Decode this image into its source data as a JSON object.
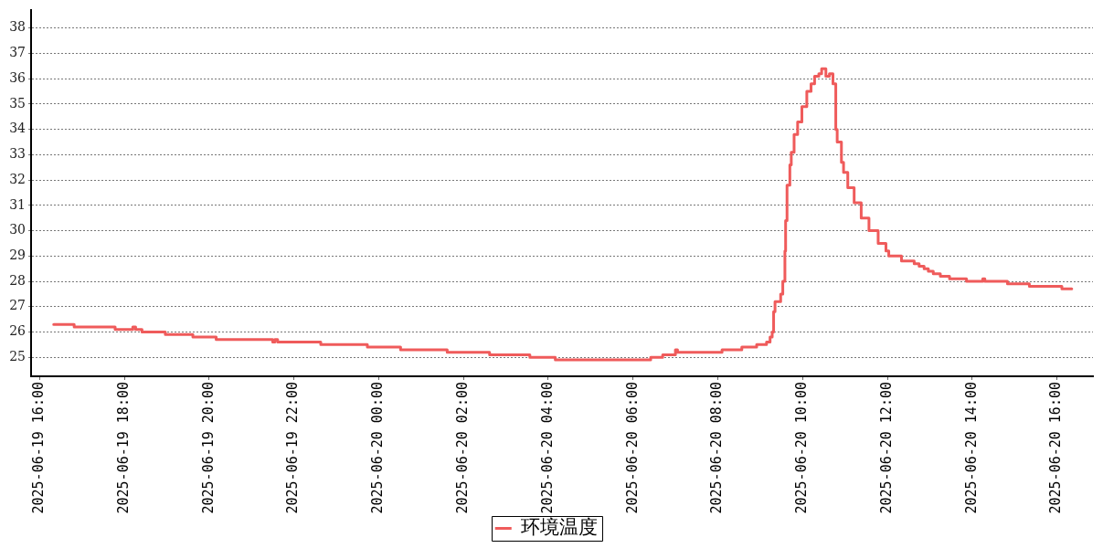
{
  "chart_data": {
    "type": "step",
    "x": [
      "2025-06-19T16:20",
      "2025-06-19T16:49",
      "2025-06-19T17:47",
      "2025-06-19T18:12",
      "2025-06-19T18:16",
      "2025-06-19T18:25",
      "2025-06-19T18:58",
      "2025-06-19T19:37",
      "2025-06-19T20:10",
      "2025-06-19T21:30",
      "2025-06-19T21:33",
      "2025-06-19T21:37",
      "2025-06-19T22:38",
      "2025-06-19T23:44",
      "2025-06-20T00:31",
      "2025-06-20T01:37",
      "2025-06-20T02:37",
      "2025-06-20T03:34",
      "2025-06-20T04:10",
      "2025-06-20T06:25",
      "2025-06-20T06:42",
      "2025-06-20T07:00",
      "2025-06-20T07:03",
      "2025-06-20T08:06",
      "2025-06-20T08:34",
      "2025-06-20T08:55",
      "2025-06-20T09:09",
      "2025-06-20T09:14",
      "2025-06-20T09:17",
      "2025-06-20T09:19",
      "2025-06-20T09:21",
      "2025-06-20T09:29",
      "2025-06-20T09:32",
      "2025-06-20T09:35",
      "2025-06-20T09:36",
      "2025-06-20T09:38",
      "2025-06-20T09:42",
      "2025-06-20T09:44",
      "2025-06-20T09:48",
      "2025-06-20T09:53",
      "2025-06-20T09:59",
      "2025-06-20T10:06",
      "2025-06-20T10:12",
      "2025-06-20T10:17",
      "2025-06-20T10:23",
      "2025-06-20T10:27",
      "2025-06-20T10:33",
      "2025-06-20T10:38",
      "2025-06-20T10:43",
      "2025-06-20T10:47",
      "2025-06-20T10:49",
      "2025-06-20T10:55",
      "2025-06-20T10:58",
      "2025-06-20T11:04",
      "2025-06-20T11:13",
      "2025-06-20T11:23",
      "2025-06-20T11:34",
      "2025-06-20T11:47",
      "2025-06-20T11:58",
      "2025-06-20T12:02",
      "2025-06-20T12:20",
      "2025-06-20T12:38",
      "2025-06-20T12:45",
      "2025-06-20T12:52",
      "2025-06-20T12:58",
      "2025-06-20T13:05",
      "2025-06-20T13:15",
      "2025-06-20T13:28",
      "2025-06-20T13:52",
      "2025-06-20T14:15",
      "2025-06-20T14:18",
      "2025-06-20T14:50",
      "2025-06-20T15:21",
      "2025-06-20T16:07",
      "2025-06-20T16:21"
    ],
    "series": [
      {
        "name": "环境温度",
        "color": "#ef5b5b",
        "values": [
          26.3,
          26.2,
          26.1,
          26.2,
          26.1,
          26.0,
          25.9,
          25.8,
          25.7,
          25.6,
          25.7,
          25.6,
          25.5,
          25.4,
          25.3,
          25.2,
          25.1,
          25.0,
          24.9,
          25.0,
          25.1,
          25.3,
          25.2,
          25.3,
          25.4,
          25.5,
          25.6,
          25.8,
          26.0,
          26.8,
          27.2,
          27.5,
          28.0,
          29.2,
          30.4,
          31.8,
          32.6,
          33.1,
          33.8,
          34.3,
          34.9,
          35.5,
          35.8,
          36.1,
          36.2,
          36.4,
          36.1,
          36.2,
          35.8,
          34.0,
          33.5,
          32.7,
          32.3,
          31.7,
          31.1,
          30.5,
          30.0,
          29.5,
          29.2,
          29.0,
          28.8,
          28.7,
          28.6,
          28.5,
          28.4,
          28.3,
          28.2,
          28.1,
          28.0,
          28.1,
          28.0,
          27.9,
          27.8,
          27.7,
          27.7
        ]
      }
    ],
    "xlim": [
      "2025-06-19T15:48",
      "2025-06-20T16:51"
    ],
    "xticks": [
      {
        "value": "2025-06-19T16:00",
        "label": "2025-06-19 16:00"
      },
      {
        "value": "2025-06-19T18:00",
        "label": "2025-06-19 18:00"
      },
      {
        "value": "2025-06-19T20:00",
        "label": "2025-06-19 20:00"
      },
      {
        "value": "2025-06-19T22:00",
        "label": "2025-06-19 22:00"
      },
      {
        "value": "2025-06-20T00:00",
        "label": "2025-06-20 00:00"
      },
      {
        "value": "2025-06-20T02:00",
        "label": "2025-06-20 02:00"
      },
      {
        "value": "2025-06-20T04:00",
        "label": "2025-06-20 04:00"
      },
      {
        "value": "2025-06-20T06:00",
        "label": "2025-06-20 06:00"
      },
      {
        "value": "2025-06-20T08:00",
        "label": "2025-06-20 08:00"
      },
      {
        "value": "2025-06-20T10:00",
        "label": "2025-06-20 10:00"
      },
      {
        "value": "2025-06-20T12:00",
        "label": "2025-06-20 12:00"
      },
      {
        "value": "2025-06-20T14:00",
        "label": "2025-06-20 14:00"
      },
      {
        "value": "2025-06-20T16:00",
        "label": "2025-06-20 16:00"
      }
    ],
    "ylim": [
      24.25,
      38.7
    ],
    "yticks": [
      25,
      26,
      27,
      28,
      29,
      30,
      31,
      32,
      33,
      34,
      35,
      36,
      37,
      38
    ],
    "grid": "y",
    "legend": "bottom"
  }
}
